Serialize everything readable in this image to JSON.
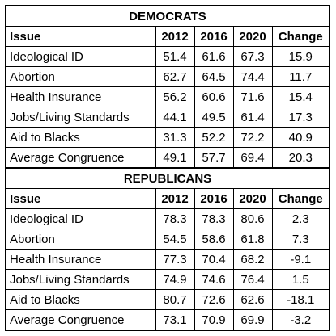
{
  "sections": [
    {
      "title": "DEMOCRATS",
      "header": [
        "Issue",
        "2012",
        "2016",
        "2020",
        "Change"
      ],
      "rows": [
        [
          "Ideological ID",
          51.4,
          61.6,
          67.3,
          15.9
        ],
        [
          "Abortion",
          62.7,
          64.5,
          74.4,
          11.7
        ],
        [
          "Health Insurance",
          56.2,
          60.6,
          71.6,
          15.4
        ],
        [
          "Jobs/Living Standards",
          44.1,
          49.5,
          61.4,
          17.3
        ],
        [
          "Aid to Blacks",
          31.3,
          52.2,
          72.2,
          40.9
        ],
        [
          "Average Congruence",
          49.1,
          57.7,
          69.4,
          20.3
        ]
      ]
    },
    {
      "title": "REPUBLICANS",
      "header": [
        "Issue",
        "2012",
        "2016",
        "2020",
        "Change"
      ],
      "rows": [
        [
          "Ideological ID",
          78.3,
          78.3,
          80.6,
          2.3
        ],
        [
          "Abortion",
          54.5,
          58.6,
          61.8,
          7.3
        ],
        [
          "Health Insurance",
          77.3,
          70.4,
          68.2,
          -9.1
        ],
        [
          "Jobs/Living Standards",
          74.9,
          74.6,
          76.4,
          1.5
        ],
        [
          "Aid to Blacks",
          80.7,
          72.6,
          62.6,
          -18.1
        ],
        [
          "Average Congruence",
          73.1,
          70.9,
          69.9,
          -3.2
        ]
      ]
    }
  ]
}
